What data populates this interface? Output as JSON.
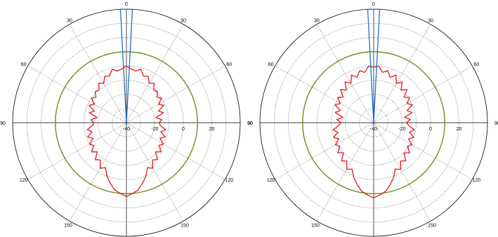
{
  "chart_data": [
    {
      "type": "polar",
      "angle_ticks": [
        "0",
        "30",
        "30",
        "60",
        "60",
        "90",
        "90",
        "120",
        "120",
        "150",
        "150"
      ],
      "radial_ticks": [
        "-40",
        "-20",
        "0",
        "20"
      ],
      "rlim": [
        -40,
        40
      ],
      "radial_grid_step": 10,
      "reference_circle_db": 10,
      "grid": true,
      "series": [
        {
          "color": "#e8161b",
          "points": [
            [
              0,
              0
            ],
            [
              5,
              -2
            ],
            [
              10,
              -3
            ],
            [
              15,
              -1
            ],
            [
              20,
              -5
            ],
            [
              25,
              -4
            ],
            [
              30,
              -8
            ],
            [
              35,
              -6
            ],
            [
              40,
              -10
            ],
            [
              45,
              -9
            ],
            [
              50,
              -12
            ],
            [
              55,
              -10
            ],
            [
              60,
              -14
            ],
            [
              65,
              -11
            ],
            [
              70,
              -16
            ],
            [
              75,
              -13
            ],
            [
              80,
              -19
            ],
            [
              85,
              -15
            ],
            [
              90,
              -17
            ],
            [
              95,
              -16
            ],
            [
              100,
              -12
            ],
            [
              105,
              -15
            ],
            [
              110,
              -11
            ],
            [
              115,
              -14
            ],
            [
              120,
              -10
            ],
            [
              125,
              -12
            ],
            [
              130,
              -8
            ],
            [
              135,
              -11
            ],
            [
              140,
              -6
            ],
            [
              145,
              -8
            ],
            [
              150,
              -3
            ],
            [
              155,
              -5
            ],
            [
              160,
              0
            ],
            [
              165,
              4
            ],
            [
              170,
              8
            ],
            [
              175,
              10
            ],
            [
              180,
              12
            ]
          ]
        },
        {
          "color": "#1f6fd1",
          "points": [
            [
              -10,
              -40
            ],
            [
              -3,
              40
            ],
            [
              3,
              40
            ],
            [
              10,
              -40
            ]
          ]
        }
      ]
    },
    {
      "type": "polar",
      "angle_ticks": [
        "0",
        "30",
        "30",
        "60",
        "60",
        "90",
        "90",
        "120",
        "120",
        "150",
        "150"
      ],
      "radial_ticks": [
        "-40",
        "-20",
        "0",
        "20"
      ],
      "rlim": [
        -40,
        40
      ],
      "radial_grid_step": 10,
      "reference_circle_db": 10,
      "grid": true,
      "series": [
        {
          "color": "#e8161b",
          "points": [
            [
              0,
              -1
            ],
            [
              5,
              0
            ],
            [
              10,
              -4
            ],
            [
              15,
              -2
            ],
            [
              20,
              -6
            ],
            [
              25,
              -3
            ],
            [
              30,
              -8
            ],
            [
              35,
              -5
            ],
            [
              40,
              -10
            ],
            [
              45,
              -7
            ],
            [
              50,
              -12
            ],
            [
              55,
              -9
            ],
            [
              60,
              -13
            ],
            [
              65,
              -10
            ],
            [
              70,
              -15
            ],
            [
              75,
              -12
            ],
            [
              80,
              -18
            ],
            [
              85,
              -14
            ],
            [
              90,
              -17
            ],
            [
              95,
              -15
            ],
            [
              100,
              -11
            ],
            [
              105,
              -14
            ],
            [
              110,
              -10
            ],
            [
              115,
              -13
            ],
            [
              120,
              -9
            ],
            [
              125,
              -11
            ],
            [
              130,
              -7
            ],
            [
              135,
              -10
            ],
            [
              140,
              -5
            ],
            [
              145,
              -7
            ],
            [
              150,
              -2
            ],
            [
              155,
              -4
            ],
            [
              160,
              1
            ],
            [
              165,
              5
            ],
            [
              170,
              9
            ],
            [
              175,
              11
            ],
            [
              180,
              13
            ]
          ]
        },
        {
          "color": "#1f6fd1",
          "points": [
            [
              -10,
              -40
            ],
            [
              -3,
              40
            ],
            [
              3,
              40
            ],
            [
              10,
              -40
            ]
          ]
        }
      ]
    }
  ]
}
